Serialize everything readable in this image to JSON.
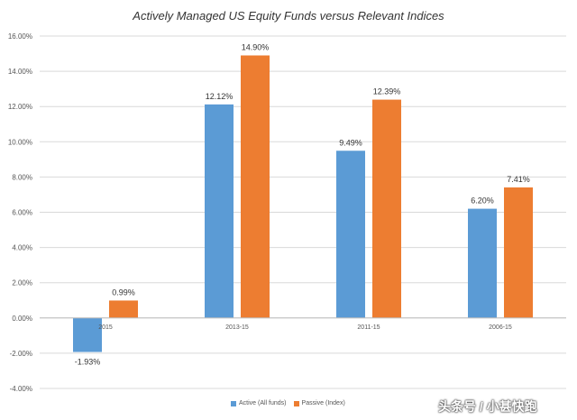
{
  "chart_data": {
    "type": "bar",
    "title": "Actively Managed US Equity Funds versus Relevant Indices",
    "categories": [
      "2015",
      "2013-15",
      "2011-15",
      "2006-15"
    ],
    "series": [
      {
        "name": "Active (All funds)",
        "values": [
          -1.93,
          12.12,
          9.49,
          6.2
        ],
        "labels": [
          "-1.93%",
          "12.12%",
          "9.49%",
          "6.20%"
        ],
        "color": "#5b9bd5"
      },
      {
        "name": "Passive (Index)",
        "values": [
          0.99,
          14.9,
          12.39,
          7.41
        ],
        "labels": [
          "0.99%",
          "14.90%",
          "12.39%",
          "7.41%"
        ],
        "color": "#ed7d31"
      }
    ],
    "yticks": [
      -4,
      -2,
      0,
      2,
      4,
      6,
      8,
      10,
      12,
      14,
      16
    ],
    "ytick_labels": [
      "-4.00%",
      "-2.00%",
      "0.00%",
      "2.00%",
      "4.00%",
      "6.00%",
      "8.00%",
      "10.00%",
      "12.00%",
      "14.00%",
      "16.00%"
    ],
    "ylim": [
      -4,
      16
    ],
    "grid": true,
    "legend_position": "bottom"
  },
  "watermark": "头条号 / 小甚快跑"
}
